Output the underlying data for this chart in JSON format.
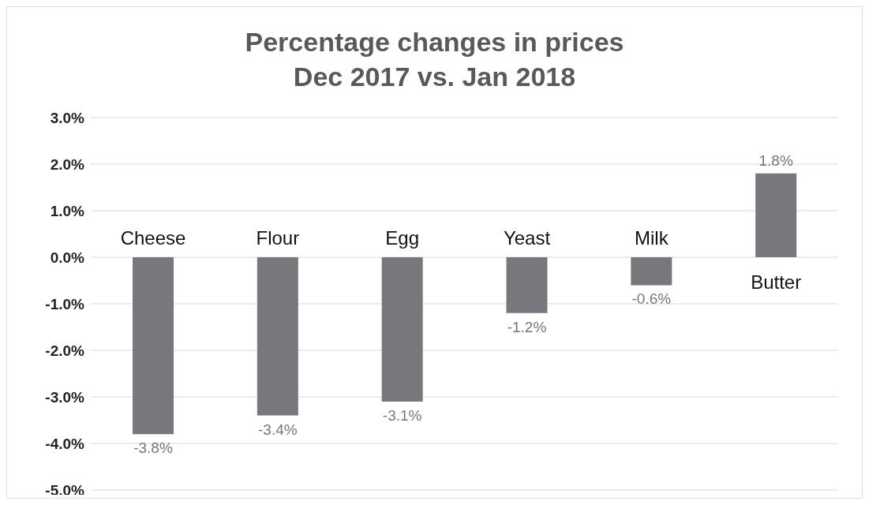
{
  "chart_data": {
    "type": "bar",
    "title": "Percentage changes in prices\nDec 2017 vs. Jan 2018",
    "categories": [
      "Cheese",
      "Flour",
      "Egg",
      "Yeast",
      "Milk",
      "Butter"
    ],
    "values": [
      -3.8,
      -3.4,
      -3.1,
      -1.2,
      -0.6,
      1.8
    ],
    "value_labels": [
      "-3.8%",
      "-3.4%",
      "-3.1%",
      "-1.2%",
      "-0.6%",
      "1.8%"
    ],
    "color": "#78777b",
    "ylim": [
      -5,
      3
    ],
    "yticks": [
      {
        "value": 3,
        "label": "3.0%"
      },
      {
        "value": 2,
        "label": "2.0%"
      },
      {
        "value": 1,
        "label": "1.0%"
      },
      {
        "value": 0,
        "label": "0.0%"
      },
      {
        "value": -1,
        "label": "-1.0%"
      },
      {
        "value": -2,
        "label": "-2.0%"
      },
      {
        "value": -3,
        "label": "-3.0%"
      },
      {
        "value": -4,
        "label": "-4.0%"
      },
      {
        "value": -5,
        "label": "-5.0%"
      }
    ],
    "grid": "y"
  }
}
